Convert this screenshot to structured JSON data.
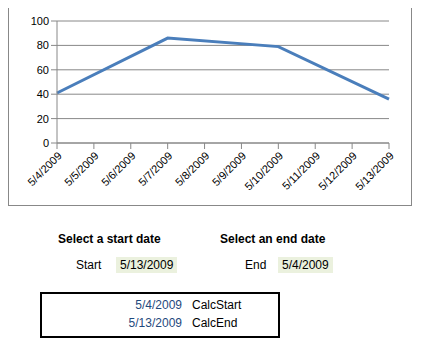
{
  "chart_data": {
    "type": "line",
    "categories": [
      "5/4/2009",
      "5/5/2009",
      "5/6/2009",
      "5/7/2009",
      "5/8/2009",
      "5/9/2009",
      "5/10/2009",
      "5/11/2009",
      "5/12/2009",
      "5/13/2009"
    ],
    "values": [
      41,
      null,
      null,
      86,
      null,
      null,
      79,
      null,
      null,
      36
    ],
    "color": "#4a7ebb",
    "ylim": [
      0,
      100
    ],
    "yticks": [
      0,
      20,
      40,
      60,
      80,
      100
    ],
    "grid": true
  },
  "controls": {
    "start": {
      "heading": "Select a start date",
      "label": "Start",
      "value": "5/13/2009"
    },
    "end": {
      "heading": "Select an end date",
      "label": "End",
      "value": "5/4/2009"
    }
  },
  "table": {
    "rows": [
      [
        "5/4/2009",
        "CalcStart"
      ],
      [
        "5/13/2009",
        "CalcEnd"
      ]
    ]
  }
}
